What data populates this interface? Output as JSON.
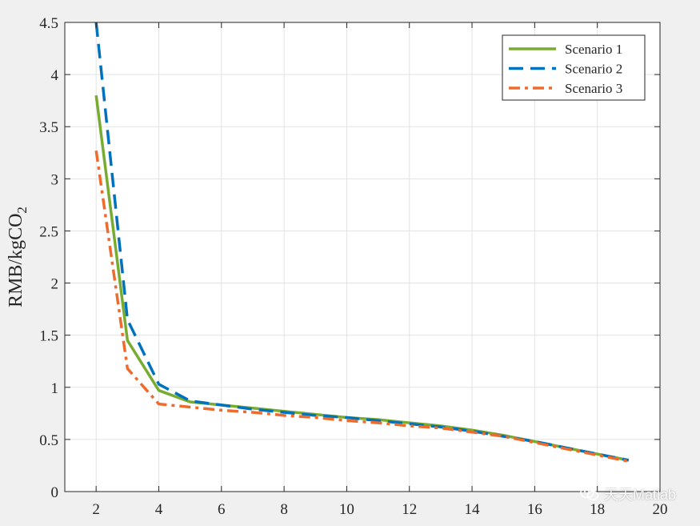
{
  "chart_data": {
    "type": "line",
    "title": "",
    "xlabel": "",
    "ylabel": "RMB/kgCO",
    "ylabel_subscript": "2",
    "xlim": [
      1,
      20
    ],
    "ylim": [
      0,
      4.5
    ],
    "xticks": [
      2,
      4,
      6,
      8,
      10,
      12,
      14,
      16,
      18,
      20
    ],
    "yticks": [
      0,
      0.5,
      1,
      1.5,
      2,
      2.5,
      3,
      3.5,
      4,
      4.5
    ],
    "ytick_labels": [
      "0",
      "0.5",
      "1",
      "1.5",
      "2",
      "2.5",
      "3",
      "3.5",
      "4",
      "4.5"
    ],
    "grid": true,
    "legend_position": "top-right",
    "x": [
      2,
      3,
      4,
      5,
      6,
      7,
      8,
      9,
      10,
      11,
      12,
      13,
      14,
      15,
      16,
      17,
      18,
      19
    ],
    "series": [
      {
        "name": "Scenario 1",
        "color": "#77ac30",
        "style": "solid",
        "values": [
          3.8,
          1.45,
          0.97,
          0.86,
          0.83,
          0.8,
          0.77,
          0.74,
          0.71,
          0.69,
          0.66,
          0.63,
          0.59,
          0.54,
          0.48,
          0.42,
          0.36,
          0.3
        ]
      },
      {
        "name": "Scenario 2",
        "color": "#0072bd",
        "style": "dashed",
        "values": [
          4.5,
          1.65,
          1.03,
          0.87,
          0.83,
          0.79,
          0.76,
          0.73,
          0.71,
          0.68,
          0.65,
          0.62,
          0.58,
          0.53,
          0.48,
          0.42,
          0.36,
          0.3
        ]
      },
      {
        "name": "Scenario 3",
        "color": "#ee6b2e",
        "style": "dashdot",
        "values": [
          3.27,
          1.18,
          0.84,
          0.81,
          0.78,
          0.76,
          0.73,
          0.71,
          0.68,
          0.66,
          0.63,
          0.61,
          0.57,
          0.53,
          0.47,
          0.41,
          0.35,
          0.29
        ]
      }
    ]
  },
  "watermark": {
    "text": "天天Matlab",
    "icon": "wechat-icon"
  }
}
